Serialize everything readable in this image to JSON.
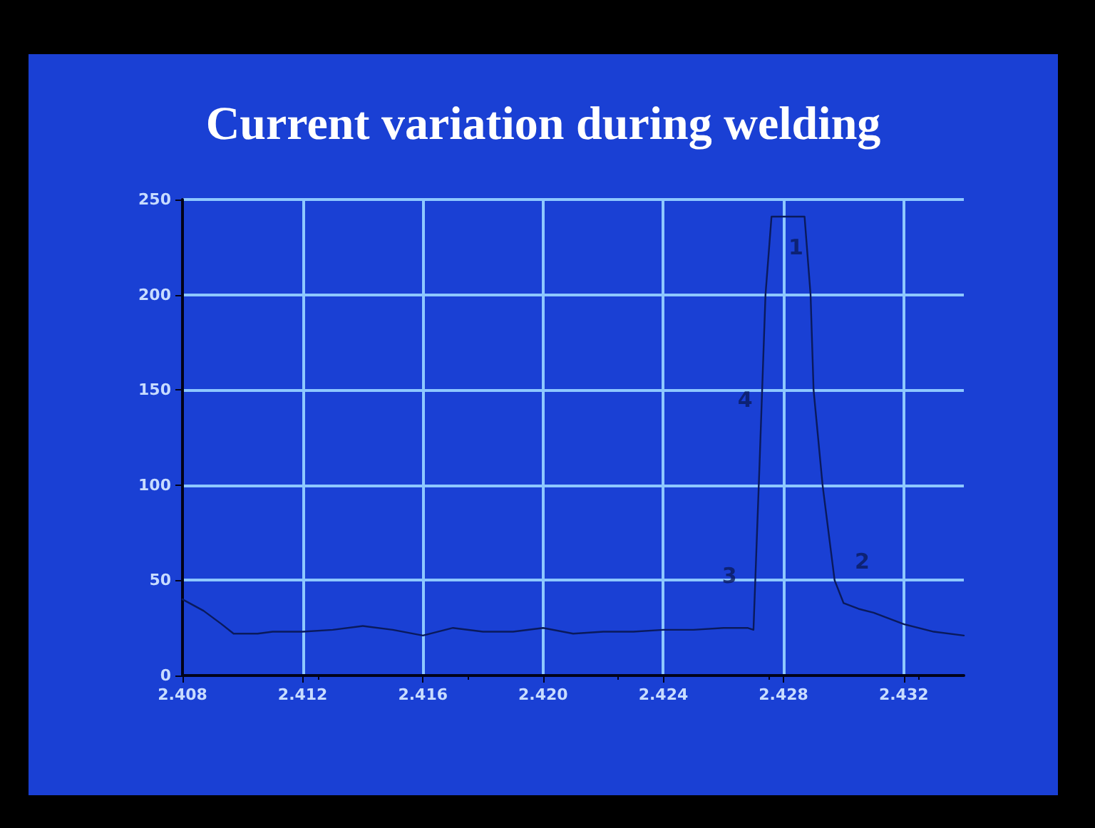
{
  "chart_data": {
    "type": "line",
    "title": "Current variation during welding",
    "series": [
      {
        "color": "#0a1a5c",
        "x": [
          2.408,
          2.4087,
          2.4093,
          2.4097,
          2.4105,
          2.411,
          2.412,
          2.413,
          2.414,
          2.415,
          2.416,
          2.417,
          2.418,
          2.419,
          2.42,
          2.421,
          2.422,
          2.423,
          2.424,
          2.425,
          2.426,
          2.4268,
          2.427,
          2.4272,
          2.4274,
          2.4276,
          2.4287,
          2.4289,
          2.429,
          2.4293,
          2.4297,
          2.43,
          2.4305,
          2.431,
          2.432,
          2.433,
          2.434
        ],
        "values": [
          40,
          34,
          27,
          22,
          22,
          23,
          23,
          24,
          26,
          24,
          21,
          25,
          23,
          23,
          25,
          22,
          23,
          23,
          24,
          24,
          25,
          25,
          24,
          110,
          200,
          241,
          241,
          200,
          150,
          100,
          50,
          38,
          35,
          33,
          27,
          23,
          21
        ]
      }
    ],
    "xlim": [
      2.408,
      2.434
    ],
    "xticks": [
      2.408,
      2.412,
      2.416,
      {
        "value": 2.42,
        "label": "2.420"
      },
      2.424,
      2.428,
      2.432
    ],
    "ylim": [
      0,
      250
    ],
    "yticks": [
      0,
      50,
      100,
      150,
      200,
      250
    ],
    "grid": true,
    "marker": "none",
    "line_style": "solid",
    "annotations": [
      "1",
      "2",
      "3",
      "4"
    ]
  }
}
